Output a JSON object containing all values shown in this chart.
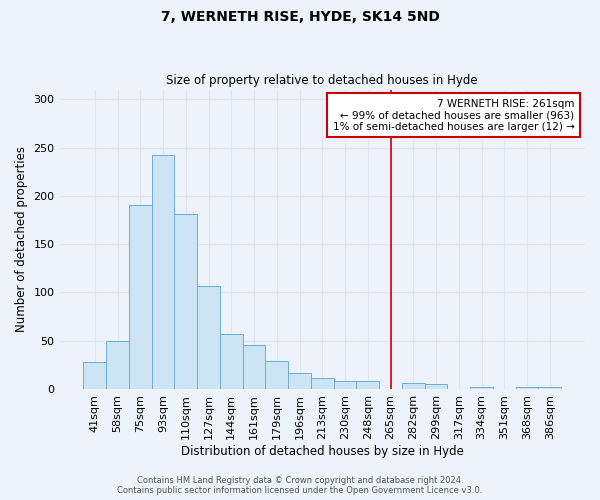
{
  "title": "7, WERNETH RISE, HYDE, SK14 5ND",
  "subtitle": "Size of property relative to detached houses in Hyde",
  "xlabel": "Distribution of detached houses by size in Hyde",
  "ylabel": "Number of detached properties",
  "bar_labels": [
    "41sqm",
    "58sqm",
    "75sqm",
    "93sqm",
    "110sqm",
    "127sqm",
    "144sqm",
    "161sqm",
    "179sqm",
    "196sqm",
    "213sqm",
    "230sqm",
    "248sqm",
    "265sqm",
    "282sqm",
    "299sqm",
    "317sqm",
    "334sqm",
    "351sqm",
    "368sqm",
    "386sqm"
  ],
  "bar_values": [
    28,
    50,
    190,
    242,
    181,
    107,
    57,
    46,
    29,
    17,
    11,
    8,
    8,
    0,
    6,
    5,
    0,
    2,
    0,
    2,
    2
  ],
  "bar_color": "#cce4f4",
  "bar_edge_color": "#6aaed6",
  "ylim": [
    0,
    310
  ],
  "yticks": [
    0,
    50,
    100,
    150,
    200,
    250,
    300
  ],
  "vline_x": 13,
  "vline_color": "#cc0000",
  "annotation_title": "7 WERNETH RISE: 261sqm",
  "annotation_line1": "← 99% of detached houses are smaller (963)",
  "annotation_line2": "1% of semi-detached houses are larger (12) →",
  "annotation_box_color": "white",
  "annotation_box_edge": "#cc0000",
  "footer1": "Contains HM Land Registry data © Crown copyright and database right 2024.",
  "footer2": "Contains public sector information licensed under the Open Government Licence v3.0.",
  "background_color": "#eef2fb",
  "grid_color": "#e0e6f0"
}
